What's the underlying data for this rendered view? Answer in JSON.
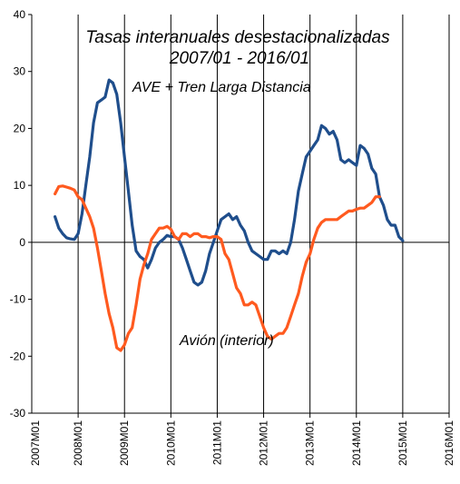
{
  "chart_data": {
    "type": "line",
    "title": "Tasas interanuales  desestacionalizadas",
    "subtitle": "2007/01 - 2016/01",
    "xlabel": "",
    "ylabel": "",
    "x_range": [
      "2007M01",
      "2016M01"
    ],
    "ylim": [
      -30,
      40
    ],
    "y_ticks": [
      -30,
      -20,
      -10,
      0,
      10,
      20,
      30,
      40
    ],
    "x_ticks": [
      "2007M01",
      "2008M01",
      "2009M01",
      "2010M01",
      "2011M01",
      "2012M01",
      "2013M01",
      "2014M01",
      "2015M01",
      "2016M01"
    ],
    "grid": "vertical lines at each year",
    "series": [
      {
        "name": "AVE + Tren Larga Distancia",
        "color": "#1f4e8c",
        "points": [
          [
            "2007M07",
            4.5
          ],
          [
            "2007M08",
            2.5
          ],
          [
            "2007M09",
            1.5
          ],
          [
            "2007M10",
            0.8
          ],
          [
            "2007M11",
            0.6
          ],
          [
            "2007M12",
            0.5
          ],
          [
            "2008M01",
            1.5
          ],
          [
            "2008M02",
            5.0
          ],
          [
            "2008M03",
            10.0
          ],
          [
            "2008M04",
            15.0
          ],
          [
            "2008M05",
            21.0
          ],
          [
            "2008M06",
            24.5
          ],
          [
            "2008M07",
            25.0
          ],
          [
            "2008M08",
            25.5
          ],
          [
            "2008M09",
            28.5
          ],
          [
            "2008M10",
            28.0
          ],
          [
            "2008M11",
            26.0
          ],
          [
            "2008M12",
            21.0
          ],
          [
            "2009M01",
            15.0
          ],
          [
            "2009M02",
            9.0
          ],
          [
            "2009M03",
            3.0
          ],
          [
            "2009M04",
            -1.5
          ],
          [
            "2009M05",
            -2.5
          ],
          [
            "2009M06",
            -3.0
          ],
          [
            "2009M07",
            -4.5
          ],
          [
            "2009M08",
            -3.0
          ],
          [
            "2009M09",
            -1.0
          ],
          [
            "2009M10",
            0.0
          ],
          [
            "2009M11",
            0.5
          ],
          [
            "2009M12",
            1.2
          ],
          [
            "2010M01",
            1.0
          ],
          [
            "2010M02",
            1.0
          ],
          [
            "2010M03",
            0.5
          ],
          [
            "2010M04",
            -1.0
          ],
          [
            "2010M05",
            -3.0
          ],
          [
            "2010M06",
            -5.0
          ],
          [
            "2010M07",
            -7.0
          ],
          [
            "2010M08",
            -7.5
          ],
          [
            "2010M09",
            -7.0
          ],
          [
            "2010M10",
            -5.0
          ],
          [
            "2010M11",
            -2.0
          ],
          [
            "2010M12",
            0.0
          ],
          [
            "2011M01",
            2.0
          ],
          [
            "2011M02",
            4.0
          ],
          [
            "2011M03",
            4.5
          ],
          [
            "2011M04",
            5.0
          ],
          [
            "2011M05",
            4.0
          ],
          [
            "2011M06",
            4.5
          ],
          [
            "2011M07",
            3.0
          ],
          [
            "2011M08",
            2.0
          ],
          [
            "2011M09",
            0.0
          ],
          [
            "2011M10",
            -1.5
          ],
          [
            "2011M11",
            -2.0
          ],
          [
            "2011M12",
            -2.5
          ],
          [
            "2012M01",
            -3.0
          ],
          [
            "2012M02",
            -3.0
          ],
          [
            "2012M03",
            -1.5
          ],
          [
            "2012M04",
            -1.5
          ],
          [
            "2012M05",
            -2.0
          ],
          [
            "2012M06",
            -1.5
          ],
          [
            "2012M07",
            -2.0
          ],
          [
            "2012M08",
            0.0
          ],
          [
            "2012M09",
            4.0
          ],
          [
            "2012M10",
            9.0
          ],
          [
            "2012M11",
            12.0
          ],
          [
            "2012M12",
            15.0
          ],
          [
            "2013M01",
            16.0
          ],
          [
            "2013M02",
            17.0
          ],
          [
            "2013M03",
            18.0
          ],
          [
            "2013M04",
            20.5
          ],
          [
            "2013M05",
            20.0
          ],
          [
            "2013M06",
            19.0
          ],
          [
            "2013M07",
            19.5
          ],
          [
            "2013M08",
            18.0
          ],
          [
            "2013M09",
            14.5
          ],
          [
            "2013M10",
            14.0
          ],
          [
            "2013M11",
            14.5
          ],
          [
            "2013M12",
            14.0
          ],
          [
            "2014M01",
            13.5
          ],
          [
            "2014M02",
            17.0
          ],
          [
            "2014M03",
            16.5
          ],
          [
            "2014M04",
            15.5
          ],
          [
            "2014M05",
            13.0
          ],
          [
            "2014M06",
            12.0
          ],
          [
            "2014M07",
            8.0
          ],
          [
            "2014M08",
            6.5
          ],
          [
            "2014M09",
            4.0
          ],
          [
            "2014M10",
            3.0
          ],
          [
            "2014M11",
            3.0
          ],
          [
            "2014M12",
            1.0
          ],
          [
            "2015M01",
            0.3
          ]
        ]
      },
      {
        "name": "Avión (interior)",
        "color": "#ff5a1f",
        "points": [
          [
            "2007M07",
            8.5
          ],
          [
            "2007M08",
            9.8
          ],
          [
            "2007M09",
            9.9
          ],
          [
            "2007M10",
            9.7
          ],
          [
            "2007M11",
            9.5
          ],
          [
            "2007M12",
            9.2
          ],
          [
            "2008M01",
            8.0
          ],
          [
            "2008M02",
            7.5
          ],
          [
            "2008M03",
            6.0
          ],
          [
            "2008M04",
            4.5
          ],
          [
            "2008M05",
            2.5
          ],
          [
            "2008M06",
            -1.0
          ],
          [
            "2008M07",
            -5.0
          ],
          [
            "2008M08",
            -9.0
          ],
          [
            "2008M09",
            -12.5
          ],
          [
            "2008M10",
            -15.0
          ],
          [
            "2008M11",
            -18.5
          ],
          [
            "2008M12",
            -19.0
          ],
          [
            "2009M01",
            -18.0
          ],
          [
            "2009M02",
            -16.0
          ],
          [
            "2009M03",
            -15.0
          ],
          [
            "2009M04",
            -11.0
          ],
          [
            "2009M05",
            -6.5
          ],
          [
            "2009M06",
            -4.0
          ],
          [
            "2009M07",
            -2.0
          ],
          [
            "2009M08",
            0.5
          ],
          [
            "2009M09",
            1.5
          ],
          [
            "2009M10",
            2.5
          ],
          [
            "2009M11",
            2.5
          ],
          [
            "2009M12",
            2.8
          ],
          [
            "2010M01",
            2.3
          ],
          [
            "2010M02",
            1.0
          ],
          [
            "2010M03",
            0.5
          ],
          [
            "2010M04",
            1.5
          ],
          [
            "2010M05",
            1.5
          ],
          [
            "2010M06",
            1.0
          ],
          [
            "2010M07",
            1.5
          ],
          [
            "2010M08",
            1.5
          ],
          [
            "2010M09",
            1.0
          ],
          [
            "2010M10",
            1.0
          ],
          [
            "2010M11",
            0.8
          ],
          [
            "2010M12",
            1.0
          ],
          [
            "2011M01",
            1.0
          ],
          [
            "2011M02",
            0.5
          ],
          [
            "2011M03",
            -2.0
          ],
          [
            "2011M04",
            -3.0
          ],
          [
            "2011M05",
            -5.5
          ],
          [
            "2011M06",
            -8.0
          ],
          [
            "2011M07",
            -9.0
          ],
          [
            "2011M08",
            -11.0
          ],
          [
            "2011M09",
            -11.0
          ],
          [
            "2011M10",
            -10.5
          ],
          [
            "2011M11",
            -11.0
          ],
          [
            "2011M12",
            -13.0
          ],
          [
            "2012M01",
            -15.0
          ],
          [
            "2012M02",
            -16.5
          ],
          [
            "2012M03",
            -17.0
          ],
          [
            "2012M04",
            -16.5
          ],
          [
            "2012M05",
            -16.0
          ],
          [
            "2012M06",
            -16.0
          ],
          [
            "2012M07",
            -15.0
          ],
          [
            "2012M08",
            -13.0
          ],
          [
            "2012M09",
            -11.0
          ],
          [
            "2012M10",
            -9.0
          ],
          [
            "2012M11",
            -6.0
          ],
          [
            "2012M12",
            -3.5
          ],
          [
            "2013M01",
            -2.0
          ],
          [
            "2013M02",
            0.5
          ],
          [
            "2013M03",
            2.5
          ],
          [
            "2013M04",
            3.5
          ],
          [
            "2013M05",
            4.0
          ],
          [
            "2013M06",
            4.0
          ],
          [
            "2013M07",
            4.0
          ],
          [
            "2013M08",
            4.0
          ],
          [
            "2013M09",
            4.5
          ],
          [
            "2013M10",
            5.0
          ],
          [
            "2013M11",
            5.5
          ],
          [
            "2013M12",
            5.5
          ],
          [
            "2014M01",
            5.8
          ],
          [
            "2014M02",
            6.0
          ],
          [
            "2014M03",
            6.0
          ],
          [
            "2014M04",
            6.5
          ],
          [
            "2014M05",
            7.0
          ],
          [
            "2014M06",
            8.0
          ],
          [
            "2014M07",
            8.0
          ]
        ]
      }
    ],
    "annotations": [
      {
        "text": "AVE + Tren Larga Distancia",
        "series": "AVE + Tren Larga Distancia"
      },
      {
        "text": "Avión (interior)",
        "series": "Avión (interior)"
      }
    ]
  }
}
